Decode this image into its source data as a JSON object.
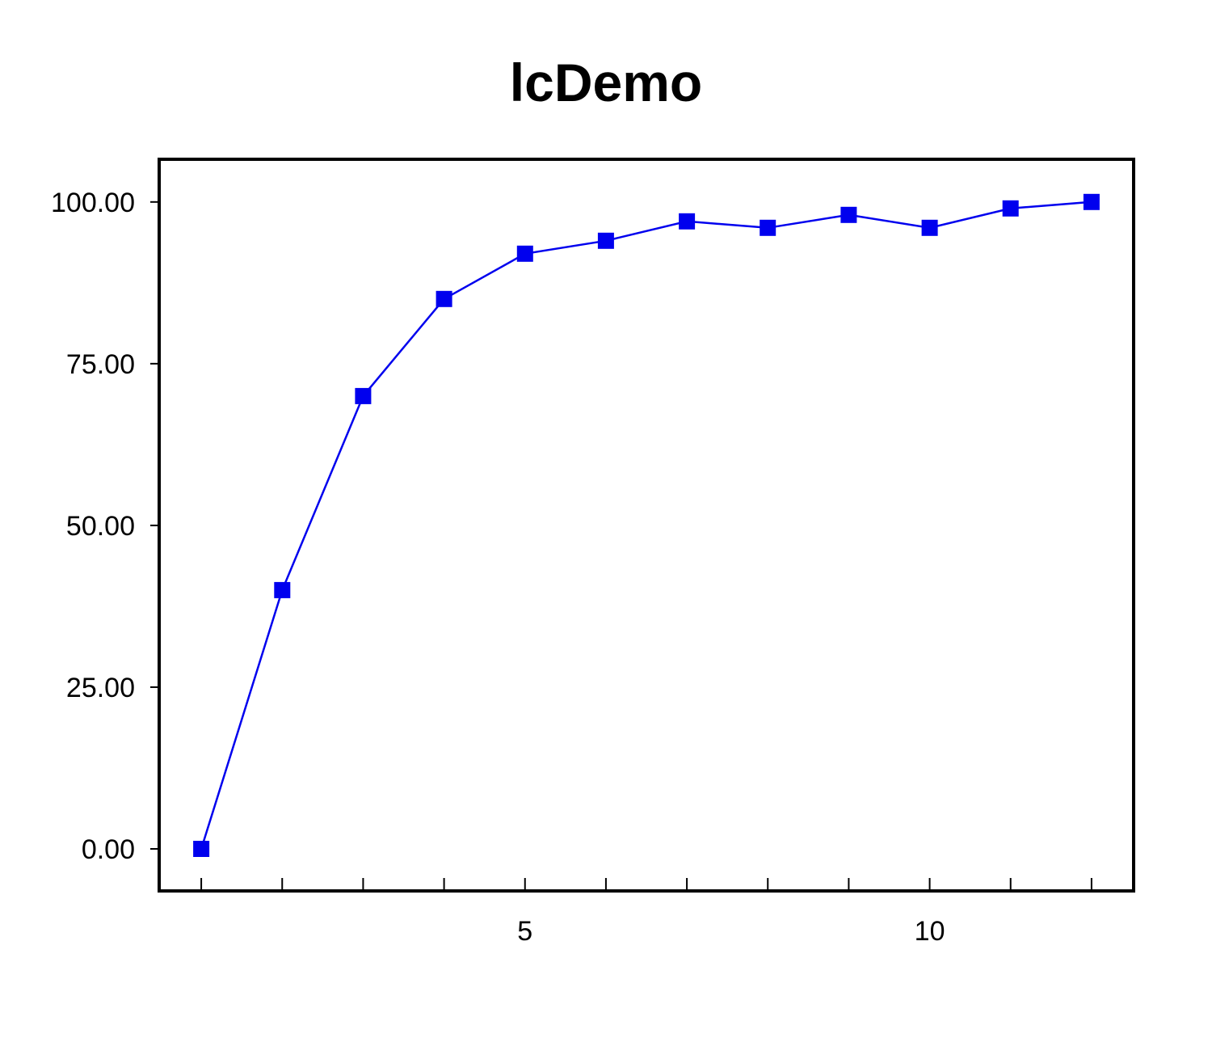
{
  "chart_data": {
    "type": "line",
    "title": "lcDemo",
    "xlabel": "",
    "ylabel": "",
    "x": [
      1,
      2,
      3,
      4,
      5,
      6,
      7,
      8,
      9,
      10,
      11,
      12
    ],
    "series": [
      {
        "values": [
          0,
          40,
          70,
          85,
          92,
          94,
          97,
          96,
          98,
          96,
          99,
          100
        ]
      }
    ],
    "xlim": [
      0.48,
      12.52
    ],
    "ylim": [
      -6.5,
      106.6
    ],
    "x_ticks": [
      1,
      2,
      3,
      4,
      5,
      6,
      7,
      8,
      9,
      10,
      11,
      12
    ],
    "x_tick_labels": [
      {
        "value": 5,
        "label": "5"
      },
      {
        "value": 10,
        "label": "10"
      }
    ],
    "y_ticks": [
      {
        "value": 0,
        "label": "0.00"
      },
      {
        "value": 25,
        "label": "25.00"
      },
      {
        "value": 50,
        "label": "50.00"
      },
      {
        "value": 75,
        "label": "75.00"
      },
      {
        "value": 100,
        "label": "100.00"
      }
    ],
    "grid": false,
    "legend": "none",
    "colors": {
      "series": "#0000ee",
      "axes": "#000000",
      "background": "#ffffff"
    },
    "marker": "square"
  }
}
